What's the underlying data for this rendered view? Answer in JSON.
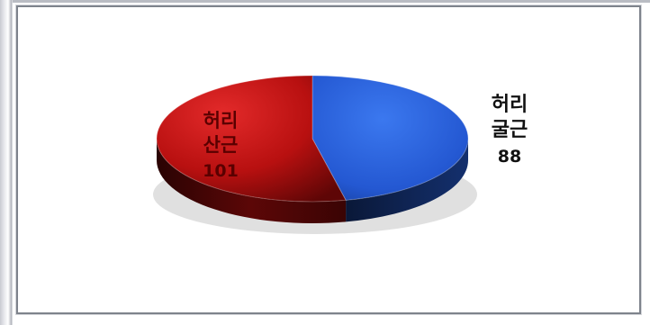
{
  "chart_data": {
    "type": "pie",
    "style": "3d",
    "title": "",
    "legend": "none",
    "slices": [
      {
        "label": "허리 산근",
        "label_lines": [
          "허리",
          "산근"
        ],
        "value": 101,
        "value_text": "101",
        "color": "#c81414",
        "label_color": "#5a0000",
        "label_position": "inside"
      },
      {
        "label": "허리 굴근",
        "label_lines": [
          "허리",
          "굴근"
        ],
        "value": 88,
        "value_text": "88",
        "color": "#2a64de",
        "label_color": "#111111",
        "label_position": "outside"
      }
    ]
  },
  "colors": {
    "red": "#c81414",
    "red_dark": "#3c0505",
    "blue": "#2a64de",
    "blue_dark": "#0c1f4a",
    "frame_border": "#7e838c"
  }
}
